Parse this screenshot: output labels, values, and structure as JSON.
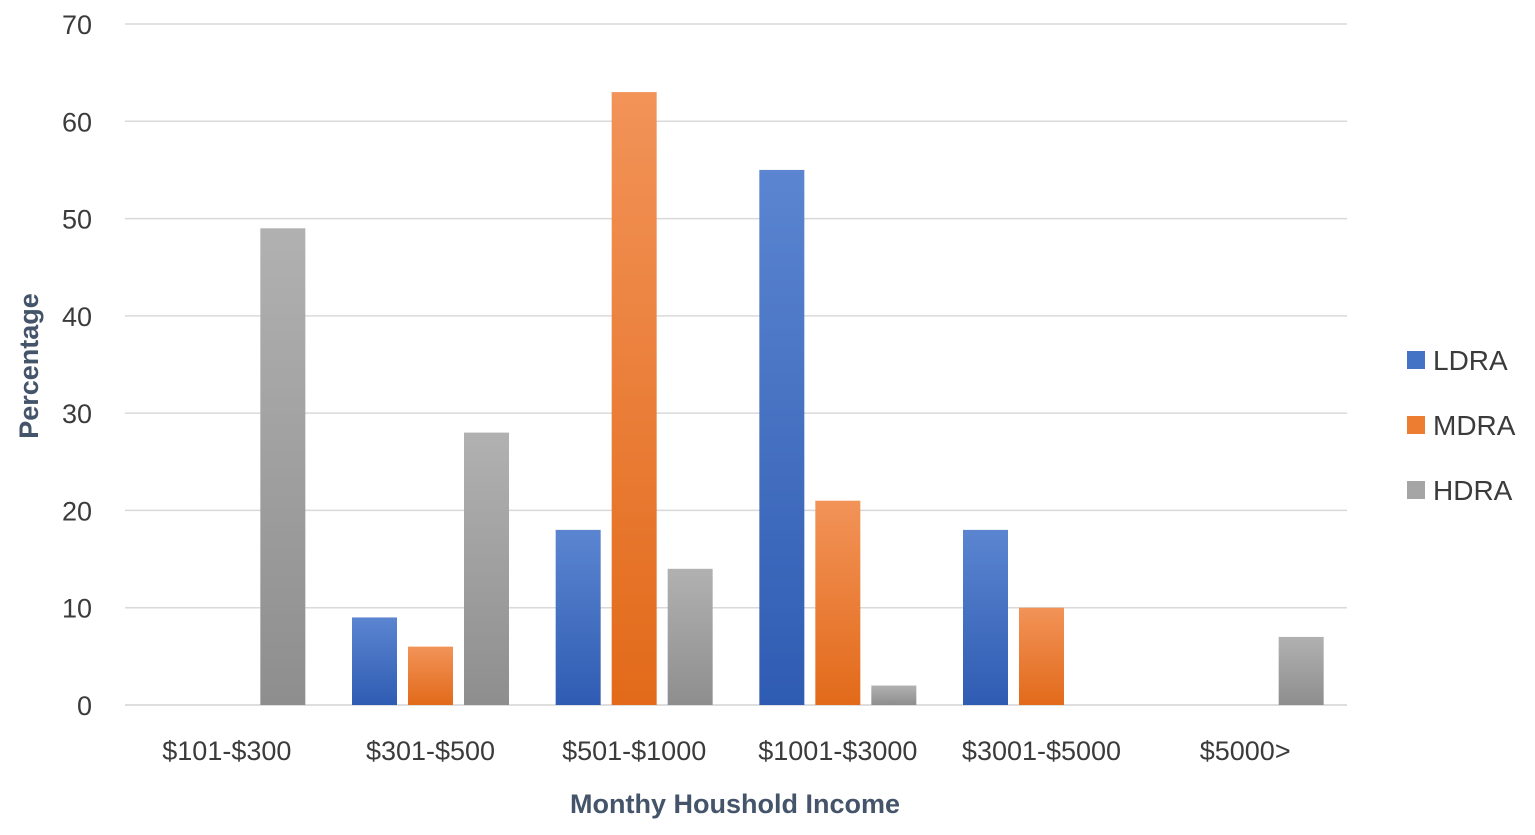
{
  "chart_data": {
    "type": "bar",
    "title": "",
    "xlabel": "Monthy Houshold Income",
    "ylabel": "Percentage",
    "ylim": [
      0,
      70
    ],
    "yticks": [
      0,
      10,
      20,
      30,
      40,
      50,
      60,
      70
    ],
    "grid": true,
    "legend_position": "right",
    "categories": [
      "$101-$300",
      "$301-$500",
      "$501-$1000",
      "$1001-$3000",
      "$3001-$5000",
      "$5000>"
    ],
    "series": [
      {
        "name": "LDRA",
        "color": "#4472c4",
        "values": [
          0,
          9,
          18,
          55,
          18,
          0
        ]
      },
      {
        "name": "MDRA",
        "color": "#ed7d31",
        "values": [
          0,
          6,
          63,
          21,
          10,
          0
        ]
      },
      {
        "name": "HDRA",
        "color": "#a5a5a5",
        "values": [
          49,
          28,
          14,
          2,
          0,
          7
        ]
      }
    ]
  }
}
